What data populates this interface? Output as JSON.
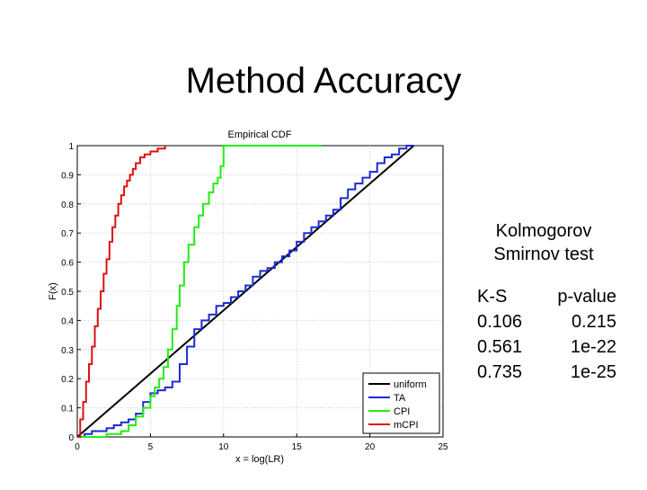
{
  "slide": {
    "title": "Method Accuracy"
  },
  "ks_test": {
    "heading_line1": "Kolmogorov",
    "heading_line2": "Smirnov test",
    "columns": [
      "K-S",
      "p-value"
    ],
    "rows": [
      {
        "ks": "0.106",
        "p": "0.215"
      },
      {
        "ks": "0.561",
        "p": "1e-22"
      },
      {
        "ks": "0.735",
        "p": "1e-25"
      }
    ]
  },
  "chart_data": {
    "type": "line",
    "title": "Empirical CDF",
    "xlabel": "x = log(LR)",
    "ylabel": "F(x)",
    "xlim": [
      0,
      25
    ],
    "ylim": [
      0,
      1
    ],
    "xticks": [
      0,
      5,
      10,
      15,
      20,
      25
    ],
    "yticks": [
      0,
      0.1,
      0.2,
      0.3,
      0.4,
      0.5,
      0.6,
      0.7,
      0.8,
      0.9,
      1
    ],
    "legend_position": "bottom-right",
    "series": [
      {
        "name": "uniform",
        "color": "#000000",
        "x": [
          0,
          23
        ],
        "y": [
          0,
          1
        ]
      },
      {
        "name": "TA",
        "color": "#1a2bd4",
        "x": [
          0,
          0.5,
          1,
          1.5,
          2,
          2.5,
          3,
          3.5,
          4,
          4.5,
          5,
          5.5,
          6,
          6.5,
          7,
          7.5,
          8,
          8.5,
          9,
          9.5,
          10,
          10.5,
          11,
          11.5,
          12,
          12.5,
          13,
          13.5,
          14,
          14.5,
          15,
          15.5,
          16,
          16.5,
          17,
          17.5,
          18,
          18.5,
          19,
          19.5,
          20,
          20.5,
          21,
          21.5,
          22,
          22.5,
          23
        ],
        "y": [
          0,
          0.01,
          0.02,
          0.02,
          0.03,
          0.04,
          0.05,
          0.06,
          0.08,
          0.12,
          0.15,
          0.16,
          0.17,
          0.19,
          0.25,
          0.31,
          0.37,
          0.4,
          0.42,
          0.45,
          0.46,
          0.48,
          0.5,
          0.52,
          0.55,
          0.57,
          0.58,
          0.6,
          0.62,
          0.64,
          0.67,
          0.7,
          0.72,
          0.74,
          0.76,
          0.78,
          0.82,
          0.85,
          0.87,
          0.89,
          0.91,
          0.94,
          0.96,
          0.97,
          0.99,
          1,
          1
        ]
      },
      {
        "name": "CPI",
        "color": "#22ee11",
        "x": [
          0,
          2,
          3,
          3.5,
          4,
          4.5,
          5,
          5.3,
          5.6,
          5.9,
          6.2,
          6.5,
          6.8,
          7,
          7.3,
          7.6,
          8,
          8.3,
          8.6,
          9,
          9.3,
          9.6,
          9.8,
          10,
          16.7
        ],
        "y": [
          0,
          0.01,
          0.02,
          0.04,
          0.07,
          0.1,
          0.14,
          0.17,
          0.2,
          0.24,
          0.3,
          0.37,
          0.45,
          0.52,
          0.6,
          0.66,
          0.72,
          0.76,
          0.8,
          0.84,
          0.87,
          0.89,
          0.93,
          1,
          1
        ]
      },
      {
        "name": "mCPI",
        "color": "#dd1111",
        "x": [
          0,
          0.2,
          0.4,
          0.6,
          0.8,
          1,
          1.2,
          1.4,
          1.6,
          1.8,
          2,
          2.2,
          2.4,
          2.6,
          2.8,
          3,
          3.2,
          3.4,
          3.6,
          3.8,
          4,
          4.3,
          4.6,
          5,
          5.5,
          6
        ],
        "y": [
          0,
          0.06,
          0.12,
          0.19,
          0.25,
          0.31,
          0.38,
          0.44,
          0.5,
          0.56,
          0.61,
          0.67,
          0.72,
          0.76,
          0.8,
          0.83,
          0.86,
          0.88,
          0.9,
          0.92,
          0.94,
          0.96,
          0.97,
          0.98,
          0.99,
          1
        ]
      }
    ]
  }
}
